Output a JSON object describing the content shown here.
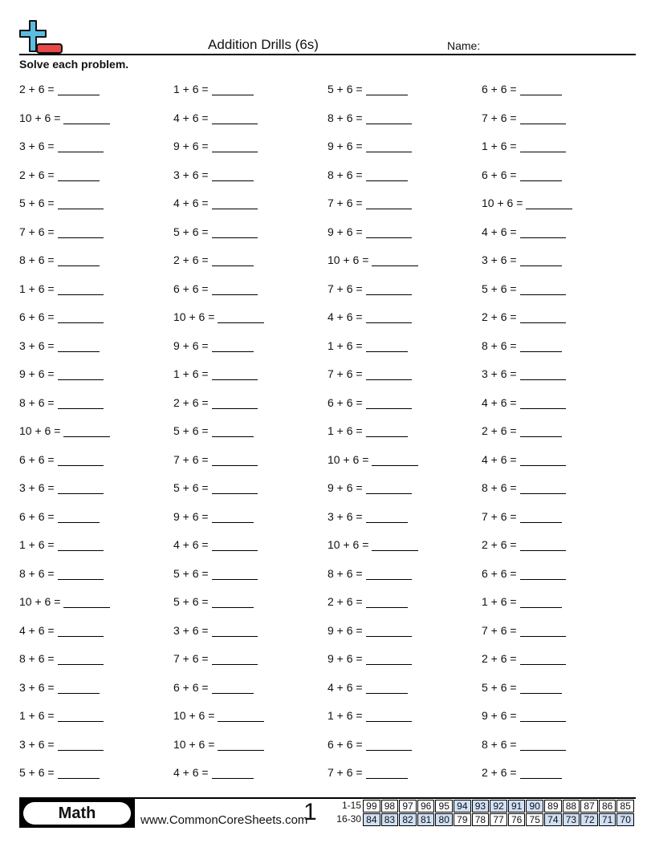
{
  "header": {
    "title": "Addition Drills (6s)",
    "name_label": "Name:",
    "instructions": "Solve each problem."
  },
  "colors": {
    "logo_plus": "#5bbde0",
    "logo_minus": "#e84848",
    "score_highlight": "#cfe0f5"
  },
  "columns": [
    [
      "2 + 6 =",
      "10 + 6 =",
      "3 + 6 =",
      "2 + 6 =",
      "5 + 6 =",
      "7 + 6 =",
      "8 + 6 =",
      "1 + 6 =",
      "6 + 6 =",
      "3 + 6 =",
      "9 + 6 =",
      "8 + 6 =",
      "10 + 6 =",
      "6 + 6 =",
      "3 + 6 =",
      "6 + 6 =",
      "1 + 6 =",
      "8 + 6 =",
      "10 + 6 =",
      "4 + 6 =",
      "8 + 6 =",
      "3 + 6 =",
      "1 + 6 =",
      "3 + 6 =",
      "5 + 6 ="
    ],
    [
      "1 + 6 =",
      "4 + 6 =",
      "9 + 6 =",
      "3 + 6 =",
      "4 + 6 =",
      "5 + 6 =",
      "2 + 6 =",
      "6 + 6 =",
      "10 + 6 =",
      "9 + 6 =",
      "1 + 6 =",
      "2 + 6 =",
      "5 + 6 =",
      "7 + 6 =",
      "5 + 6 =",
      "9 + 6 =",
      "4 + 6 =",
      "5 + 6 =",
      "5 + 6 =",
      "3 + 6 =",
      "7 + 6 =",
      "6 + 6 =",
      "10 + 6 =",
      "10 + 6 =",
      "4 + 6 ="
    ],
    [
      "5 + 6 =",
      "8 + 6 =",
      "9 + 6 =",
      "8 + 6 =",
      "7 + 6 =",
      "9 + 6 =",
      "10 + 6 =",
      "7 + 6 =",
      "4 + 6 =",
      "1 + 6 =",
      "7 + 6 =",
      "6 + 6 =",
      "1 + 6 =",
      "10 + 6 =",
      "9 + 6 =",
      "3 + 6 =",
      "10 + 6 =",
      "8 + 6 =",
      "2 + 6 =",
      "9 + 6 =",
      "9 + 6 =",
      "4 + 6 =",
      "1 + 6 =",
      "6 + 6 =",
      "7 + 6 ="
    ],
    [
      "6 + 6 =",
      "7 + 6 =",
      "1 + 6 =",
      "6 + 6 =",
      "10 + 6 =",
      "4 + 6 =",
      "3 + 6 =",
      "5 + 6 =",
      "2 + 6 =",
      "8 + 6 =",
      "3 + 6 =",
      "4 + 6 =",
      "2 + 6 =",
      "4 + 6 =",
      "8 + 6 =",
      "7 + 6 =",
      "2 + 6 =",
      "6 + 6 =",
      "1 + 6 =",
      "7 + 6 =",
      "2 + 6 =",
      "5 + 6 =",
      "9 + 6 =",
      "8 + 6 =",
      "2 + 6 ="
    ]
  ],
  "footer": {
    "subject": "Math",
    "site": "www.CommonCoreSheets.com",
    "page": "1",
    "score_rows": [
      {
        "label": "1-15",
        "values": [
          "99",
          "98",
          "97",
          "96",
          "95",
          "94",
          "93",
          "92",
          "91",
          "90",
          "89",
          "88",
          "87",
          "86",
          "85"
        ],
        "highlighted": [
          false,
          false,
          false,
          false,
          false,
          true,
          true,
          true,
          true,
          true,
          false,
          false,
          false,
          false,
          false
        ]
      },
      {
        "label": "16-30",
        "values": [
          "84",
          "83",
          "82",
          "81",
          "80",
          "79",
          "78",
          "77",
          "76",
          "75",
          "74",
          "73",
          "72",
          "71",
          "70"
        ],
        "highlighted": [
          true,
          true,
          true,
          true,
          true,
          false,
          false,
          false,
          false,
          false,
          true,
          true,
          true,
          true,
          true
        ]
      }
    ]
  }
}
